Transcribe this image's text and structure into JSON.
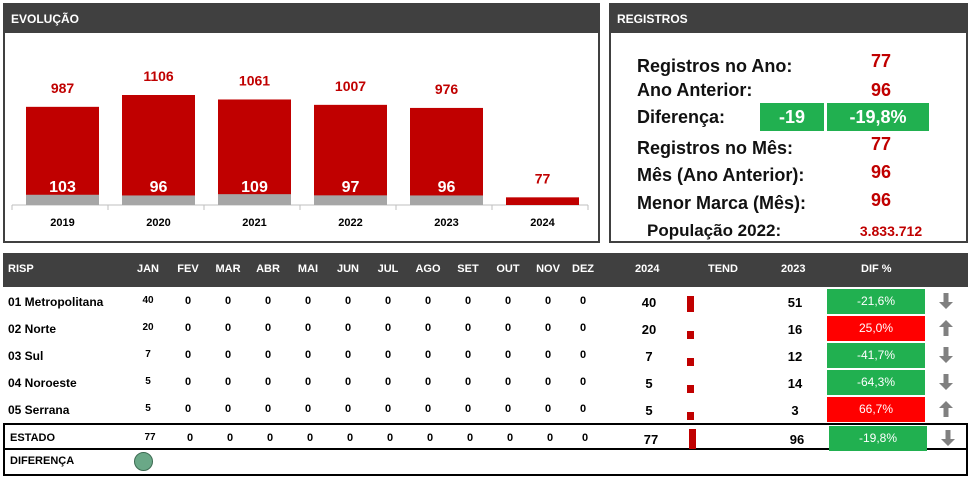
{
  "evolucao": {
    "title": "EVOLUÇÃO",
    "colors": {
      "main": "#c00000",
      "month": "#a6a6a6"
    },
    "chart_data": {
      "type": "bar",
      "categories": [
        "2019",
        "2020",
        "2021",
        "2022",
        "2023",
        "2024"
      ],
      "series": [
        {
          "values": [
            987,
            1106,
            1061,
            1007,
            976,
            77
          ]
        },
        {
          "values": [
            103,
            96,
            109,
            97,
            96,
            null
          ]
        }
      ]
    }
  },
  "registros": {
    "title": "REGISTROS",
    "ano_label": "Registros no Ano:",
    "ano_value": "77",
    "anterior_label": "Ano Anterior:",
    "anterior_value": "96",
    "diferenca_label": "Diferença:",
    "diferenca_abs": "-19",
    "diferenca_pct": "-19,8%",
    "mes_label": "Registros no Mês:",
    "mes_value": "77",
    "mes_anterior_label": "Mês (Ano Anterior):",
    "mes_anterior_value": "96",
    "menor_label": "Menor Marca (Mês):",
    "menor_value": "96",
    "populacao_label": "População 2022:",
    "populacao_value": "3.833.712"
  },
  "table": {
    "headers": [
      "RISP",
      "JAN",
      "FEV",
      "MAR",
      "ABR",
      "MAI",
      "JUN",
      "JUL",
      "AGO",
      "SET",
      "OUT",
      "NOV",
      "DEZ",
      "2024",
      "TEND",
      "2023",
      "DIF %"
    ],
    "rows": [
      {
        "name": "01 Metropolitana",
        "months": [
          "40",
          "0",
          "0",
          "0",
          "0",
          "0",
          "0",
          "0",
          "0",
          "0",
          "0",
          "0"
        ],
        "y2024": "40",
        "y2023": "51",
        "dif": "-21,6%",
        "trend": "down",
        "color": "#21b050"
      },
      {
        "name": "02 Norte",
        "months": [
          "20",
          "0",
          "0",
          "0",
          "0",
          "0",
          "0",
          "0",
          "0",
          "0",
          "0",
          "0"
        ],
        "y2024": "20",
        "y2023": "16",
        "dif": "25,0%",
        "trend": "up",
        "color": "#ff0000"
      },
      {
        "name": "03 Sul",
        "months": [
          "7",
          "0",
          "0",
          "0",
          "0",
          "0",
          "0",
          "0",
          "0",
          "0",
          "0",
          "0"
        ],
        "y2024": "7",
        "y2023": "12",
        "dif": "-41,7%",
        "trend": "down",
        "color": "#21b050"
      },
      {
        "name": "04 Noroeste",
        "months": [
          "5",
          "0",
          "0",
          "0",
          "0",
          "0",
          "0",
          "0",
          "0",
          "0",
          "0",
          "0"
        ],
        "y2024": "5",
        "y2023": "14",
        "dif": "-64,3%",
        "trend": "down",
        "color": "#21b050"
      },
      {
        "name": "05 Serrana",
        "months": [
          "5",
          "0",
          "0",
          "0",
          "0",
          "0",
          "0",
          "0",
          "0",
          "0",
          "0",
          "0"
        ],
        "y2024": "5",
        "y2023": "3",
        "dif": "66,7%",
        "trend": "up",
        "color": "#ff0000"
      }
    ],
    "estado": {
      "name": "ESTADO",
      "months": [
        "77",
        "0",
        "0",
        "0",
        "0",
        "0",
        "0",
        "0",
        "0",
        "0",
        "0",
        "0"
      ],
      "y2024": "77",
      "y2023": "96",
      "dif": "-19,8%",
      "trend": "down",
      "color": "#21b050"
    },
    "diferenca_label": "DIFERENÇA",
    "status_color": "#6aa887"
  }
}
